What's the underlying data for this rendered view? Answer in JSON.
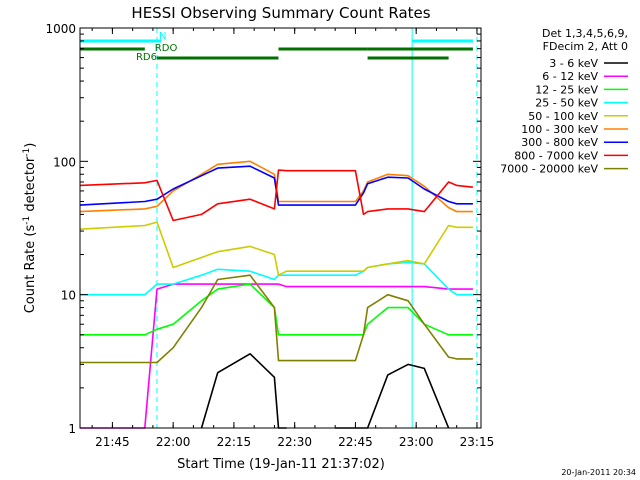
{
  "chart_data": {
    "type": "line",
    "title": "HESSI Observing Summary Count Rates",
    "xlabel": "Start Time (19-Jan-11 21:37:02)",
    "ylabel_main": "Count Rate (s",
    "ylabel_sup1": "-1",
    "ylabel_mid": " detector",
    "ylabel_sup2": "-1",
    "ylabel_end": ")",
    "yscale": "log",
    "ylim": [
      1,
      1000
    ],
    "xlim_minutes": [
      0,
      99
    ],
    "x_ticks": [
      {
        "label": "21:45",
        "minute": 8
      },
      {
        "label": "22:00",
        "minute": 23
      },
      {
        "label": "22:15",
        "minute": 38
      },
      {
        "label": "22:30",
        "minute": 53
      },
      {
        "label": "22:45",
        "minute": 68
      },
      {
        "label": "23:00",
        "minute": 83
      },
      {
        "label": "23:15",
        "minute": 98
      }
    ],
    "y_ticks": [
      {
        "label": "1",
        "value": 1
      },
      {
        "label": "10",
        "value": 10
      },
      {
        "label": "100",
        "value": 100
      },
      {
        "label": "1000",
        "value": 1000
      }
    ],
    "legend_header": [
      "Det 1,3,4,5,6,9,",
      "FDecim 2, Att 0"
    ],
    "legend_placement": "right",
    "flags": [
      {
        "label": "N",
        "color": "#00ffff",
        "segments": [
          [
            0,
            20
          ],
          [
            82,
            97
          ]
        ]
      },
      {
        "label": "RDO",
        "color": "#007000",
        "segments": [
          [
            0,
            16
          ],
          [
            49,
            71
          ],
          [
            71,
            97
          ]
        ]
      },
      {
        "label": "RD6",
        "color": "#007000",
        "segments": [
          [
            19,
            49
          ],
          [
            71,
            91
          ]
        ]
      }
    ],
    "vlines": [
      {
        "style": "solid",
        "color": "#00ffff",
        "minute": 0
      },
      {
        "style": "dashed",
        "color": "#00ffff",
        "minute": 19
      },
      {
        "style": "solid",
        "color": "#00ffff",
        "minute": 82
      },
      {
        "style": "dashed",
        "color": "#00ffff",
        "minute": 98
      }
    ],
    "time_minutes": [
      0,
      16,
      19,
      23,
      30,
      34,
      42,
      48,
      49,
      51,
      56,
      63,
      68,
      70,
      71,
      76,
      81,
      85,
      91,
      93,
      97
    ],
    "series": [
      {
        "name": "3 - 6 keV",
        "color": "#000000",
        "values": [
          null,
          null,
          null,
          null,
          1,
          2.6,
          3.6,
          2.4,
          1,
          1,
          null,
          1,
          1,
          1,
          1,
          2.5,
          3,
          2.8,
          1,
          null,
          null
        ]
      },
      {
        "name": "6 - 12 keV",
        "color": "#ff00ff",
        "values": [
          1,
          1,
          11,
          12,
          12,
          12,
          12,
          12,
          12,
          11.5,
          11.5,
          11.5,
          11.5,
          11.5,
          11.5,
          11.5,
          11.5,
          11.5,
          11,
          11,
          11
        ]
      },
      {
        "name": "12 - 25 keV",
        "color": "#00ff00",
        "values": [
          5,
          5,
          5.5,
          6,
          9,
          11,
          12,
          8,
          5,
          5,
          5,
          5,
          5,
          5,
          6,
          8,
          8,
          6,
          5,
          5,
          5
        ]
      },
      {
        "name": "25 - 50 keV",
        "color": "#00ffff",
        "values": [
          10,
          10,
          12,
          12,
          14,
          15.5,
          15,
          13,
          14,
          14,
          14,
          14,
          14,
          15,
          16,
          17,
          17.5,
          17,
          11,
          10,
          10
        ]
      },
      {
        "name": "50 - 100 keV",
        "color": "#cccc00",
        "values": [
          31,
          33,
          35,
          16,
          19,
          21,
          23,
          20,
          14,
          15,
          15,
          15,
          15,
          15,
          16,
          17,
          18,
          17,
          33,
          32,
          32
        ]
      },
      {
        "name": "100 - 300 keV",
        "color": "#ff8000",
        "values": [
          42,
          44,
          46,
          60,
          80,
          95,
          100,
          80,
          50,
          50,
          50,
          50,
          50,
          60,
          70,
          80,
          78,
          65,
          45,
          42,
          42
        ]
      },
      {
        "name": "300 - 800 keV",
        "color": "#0000ff",
        "values": [
          47,
          50,
          52,
          62,
          78,
          89,
          92,
          75,
          47,
          47,
          47,
          47,
          47,
          58,
          68,
          76,
          75,
          62,
          50,
          48,
          48
        ]
      },
      {
        "name": "800 - 7000 keV",
        "color": "#ff0000",
        "values": [
          66,
          69,
          72,
          36,
          40,
          48,
          52,
          44,
          86,
          85,
          85,
          85,
          85,
          40,
          42,
          44,
          44,
          42,
          70,
          66,
          64
        ]
      },
      {
        "name": "7000 - 20000 keV",
        "color": "#808000",
        "values": [
          3.1,
          3.1,
          3.1,
          4,
          8,
          13,
          14,
          8,
          3.2,
          3.2,
          3.2,
          3.2,
          3.2,
          5,
          8,
          10,
          9,
          6,
          3.4,
          3.3,
          3.3
        ]
      }
    ],
    "footer_date": "20-Jan-2011 20:34"
  },
  "colors": {
    "background": "#ffffff",
    "axis": "#000000"
  }
}
